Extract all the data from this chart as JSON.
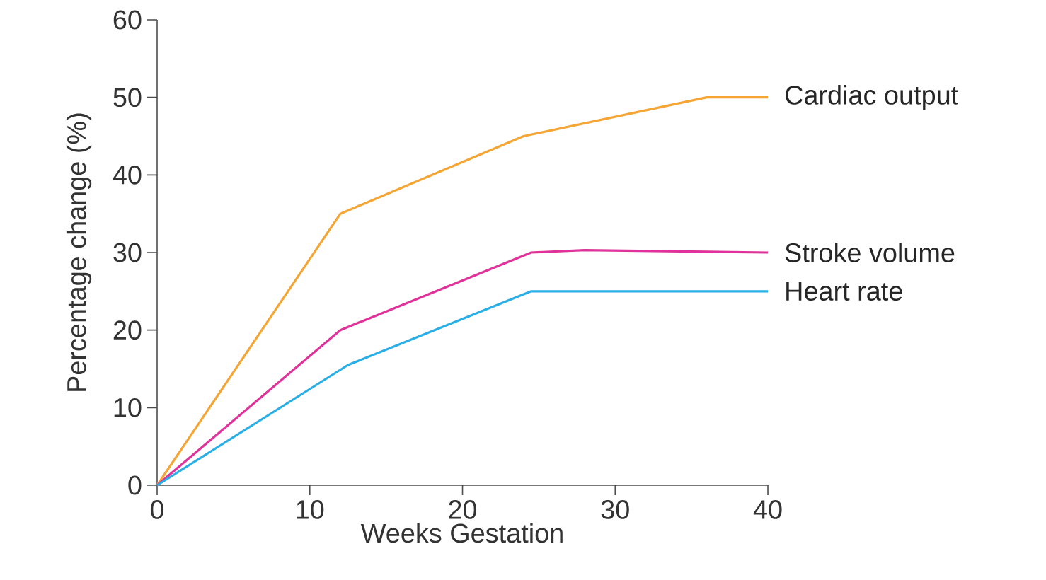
{
  "chart_data": {
    "type": "line",
    "xlabel": "Weeks Gestation",
    "ylabel": "Percentage change (%)",
    "xlim": [
      0,
      40
    ],
    "ylim": [
      0,
      60
    ],
    "xticks": [
      0,
      10,
      20,
      30,
      40
    ],
    "yticks": [
      0,
      10,
      20,
      30,
      40,
      50,
      60
    ],
    "grid": false,
    "marker": "none",
    "line_style": "solid",
    "series": [
      {
        "name": "Cardiac output",
        "color": "#f5a533",
        "x": [
          0,
          12,
          24,
          36,
          40
        ],
        "values": [
          0,
          35,
          45,
          50,
          50
        ]
      },
      {
        "name": "Stroke volume",
        "color": "#e0329a",
        "x": [
          0,
          12,
          24.5,
          28,
          40
        ],
        "values": [
          0,
          20,
          30,
          30.3,
          30
        ]
      },
      {
        "name": "Heart rate",
        "color": "#29aee6",
        "x": [
          0,
          12.5,
          24.5,
          40
        ],
        "values": [
          0,
          15.5,
          25,
          25
        ]
      }
    ]
  }
}
